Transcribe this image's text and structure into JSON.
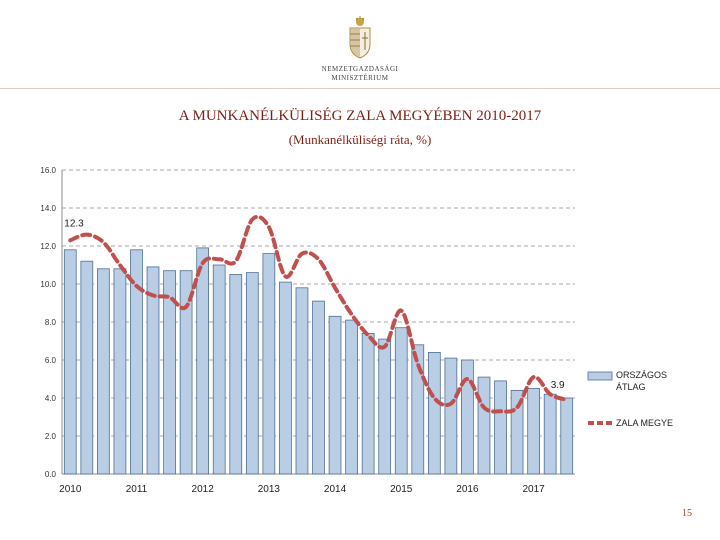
{
  "header": {
    "logo_line1": "NEMZETGAZDASÁGI",
    "logo_line2": "MINISZTÉRIUM"
  },
  "page_number": "15",
  "colors": {
    "bar_fill": "#b9cde5",
    "bar_stroke": "#4f6f95",
    "line": "#c0504d",
    "title": "#7a1f14"
  },
  "chart_data": {
    "type": "bar",
    "title": "A MUNKANÉLKÜLISÉG ZALA MEGYÉBEN 2010-2017",
    "subtitle": "(Munkanélküliségi ráta, %)",
    "xlabel": "",
    "ylabel": "",
    "ylim": [
      0,
      16
    ],
    "yticks": [
      "0.0",
      "2.0",
      "4.0",
      "6.0",
      "8.0",
      "10.0",
      "12.0",
      "14.0",
      "16.0"
    ],
    "grid": true,
    "legend_position": "right",
    "year_labels": [
      "2010",
      "2011",
      "2012",
      "2013",
      "2014",
      "2015",
      "2016",
      "2017"
    ],
    "series": [
      {
        "name": "ORSZÁGOS ÁTLAG",
        "type": "bar",
        "values": [
          11.8,
          11.2,
          10.8,
          10.8,
          11.8,
          10.9,
          10.7,
          10.7,
          11.9,
          11.0,
          10.5,
          10.6,
          11.6,
          10.1,
          9.8,
          9.1,
          8.3,
          8.1,
          7.4,
          7.1,
          7.7,
          6.8,
          6.4,
          6.1,
          6.0,
          5.1,
          4.9,
          4.4,
          4.5,
          4.2,
          4.0
        ]
      },
      {
        "name": "ZALA MEGYE",
        "type": "line",
        "values": [
          12.3,
          12.6,
          12.2,
          11.0,
          9.9,
          9.4,
          9.3,
          8.8,
          11.1,
          11.3,
          11.2,
          13.4,
          13.0,
          10.4,
          11.6,
          11.3,
          9.8,
          8.4,
          7.3,
          6.7,
          8.6,
          5.8,
          4.0,
          3.7,
          5.0,
          3.5,
          3.3,
          3.5,
          5.1,
          4.2,
          3.9
        ]
      }
    ],
    "data_labels": [
      {
        "series": 1,
        "index": 0,
        "text": "12.3"
      },
      {
        "series": 1,
        "index": 30,
        "text": "3.9"
      }
    ]
  }
}
